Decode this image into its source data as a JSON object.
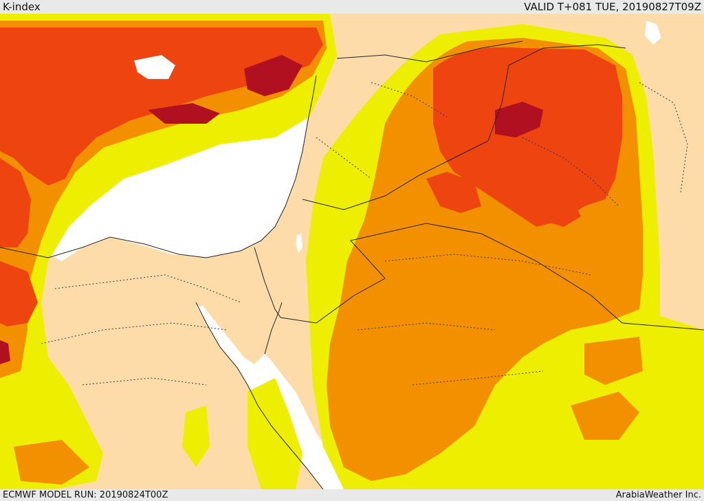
{
  "header": {
    "title": "K-index",
    "valid": "VALID T+081 TUE, 20190827T09Z"
  },
  "footer": {
    "model_run": "ECMWF MODEL RUN: 20190824T00Z",
    "credit": "ArabiaWeather Inc."
  },
  "map": {
    "region": "Eastern Mediterranean, Levant, Iraq, Arabian Peninsula",
    "colors": {
      "background": "#fddcaa",
      "water": "#ffffff",
      "level_1": "#eeee00",
      "level_2": "#f29000",
      "level_3": "#ee4410",
      "level_4": "#b01020",
      "borders": "#222222"
    }
  }
}
